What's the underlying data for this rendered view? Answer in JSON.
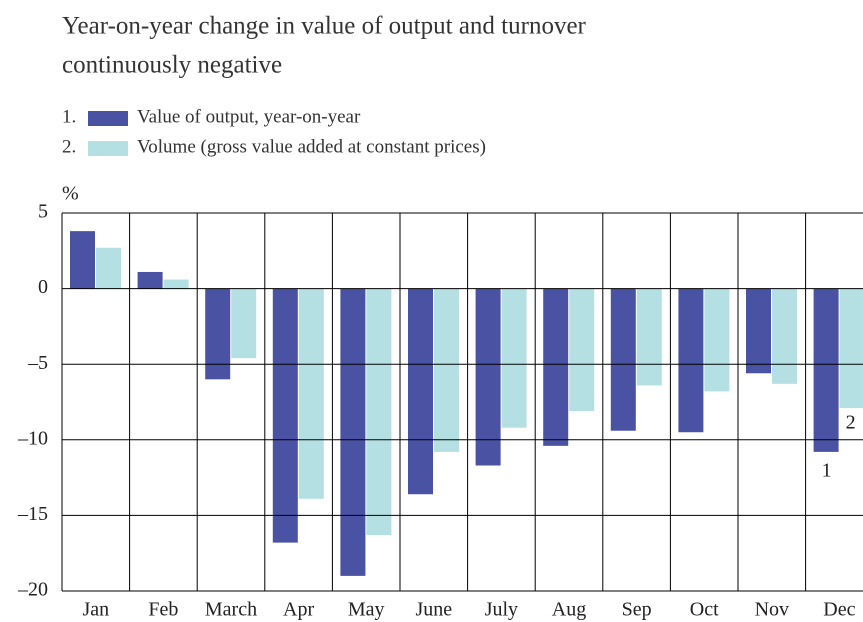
{
  "chart_data": {
    "type": "bar",
    "title": [
      "Year-on-year change in value of output and turnover",
      "continuously negative"
    ],
    "y_label": "%",
    "categories": [
      "Jan",
      "Feb",
      "March",
      "Apr",
      "May",
      "June",
      "July",
      "Aug",
      "Sep",
      "Oct",
      "Nov",
      "Dec"
    ],
    "series": [
      {
        "number": "1.",
        "name": "Value of output, year-on-year",
        "color": "#4a52a4",
        "values": [
          3.8,
          1.1,
          -6.0,
          -16.8,
          -19.0,
          -13.6,
          -11.7,
          -10.4,
          -9.4,
          -9.5,
          -5.6,
          -10.8
        ]
      },
      {
        "number": "2.",
        "name": "Volume (gross value added at constant prices)",
        "color": "#b5e0e3",
        "values": [
          2.7,
          0.6,
          -4.6,
          -13.9,
          -16.3,
          -10.8,
          -9.2,
          -8.1,
          -6.4,
          -6.8,
          -6.3,
          -7.9
        ]
      }
    ],
    "annotations": [
      "1",
      "2"
    ],
    "ylim": [
      -20,
      5
    ],
    "yticks": [
      5,
      0,
      {
        "value": -5,
        "label": "–5"
      },
      {
        "value": -10,
        "label": "–10"
      },
      {
        "value": -15,
        "label": "–15"
      },
      {
        "value": -20,
        "label": "–20"
      }
    ],
    "grid": true
  }
}
